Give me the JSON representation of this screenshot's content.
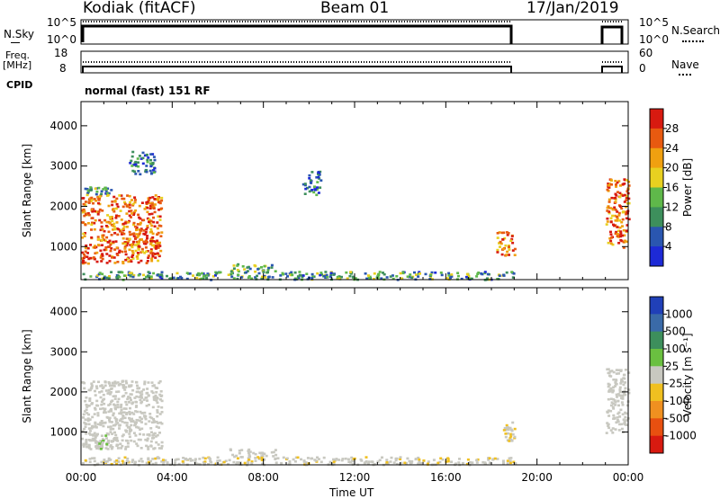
{
  "header": {
    "station": "Kodiak (fitACF)",
    "beam": "Beam 01",
    "date": "17/Jan/2019",
    "mode": "normal (fast) 151 RF"
  },
  "left_labels": {
    "nsky": "N.Sky",
    "nsky_hi": "10^5",
    "nsky_lo": "10^0",
    "freq": "Freq.",
    "freq_unit": "[MHz]",
    "freq_hi": "18",
    "freq_lo": "8",
    "cpid": "CPID"
  },
  "right_labels": {
    "nsearch_hi": "10^5",
    "nsearch_lo": "10^0",
    "nsearch": "N.Search",
    "nave_hi": "60",
    "nave_lo": "0",
    "nave": "Nave"
  },
  "axes": {
    "x_ticks": [
      "00:00",
      "04:00",
      "08:00",
      "12:00",
      "16:00",
      "20:00",
      "00:00"
    ],
    "xlabel": "Time UT",
    "ylabel": "Slant Range [km]",
    "y_ticks": [
      "1000",
      "2000",
      "3000",
      "4000"
    ]
  },
  "power_scale": {
    "label": "Power [dB]",
    "ticks": [
      "4",
      "8",
      "12",
      "16",
      "20",
      "24",
      "28"
    ],
    "colors": [
      "#1d2ad6",
      "#2a56b0",
      "#3d8f5c",
      "#5fb84a",
      "#e8d020",
      "#f0a010",
      "#e85a10",
      "#d81a10"
    ]
  },
  "velocity_scale": {
    "label": "Velocity [m s⁻¹]",
    "ticks": [
      "1000",
      "500",
      "100",
      "25",
      "-25",
      "-100",
      "-500",
      "-1000"
    ],
    "colors": [
      "#2040b8",
      "#3a6aa8",
      "#3d8f5c",
      "#6ac040",
      "#c8c8c0",
      "#f0c020",
      "#f09020",
      "#e85010",
      "#d81a10"
    ]
  },
  "chart_data": [
    {
      "type": "heatmap",
      "title": "Power",
      "xlabel": "Time UT",
      "ylabel": "Slant Range [km]",
      "xlim": [
        "00:00",
        "24:00"
      ],
      "ylim": [
        180,
        4600
      ],
      "zlabel": "Power [dB]",
      "zlim": [
        0,
        30
      ],
      "data_gap": [
        "19:00",
        "23:00"
      ],
      "regions": [
        {
          "t0": 0.0,
          "t1": 3.5,
          "r0": 600,
          "r1": 2300,
          "level": 24
        },
        {
          "t0": 0.0,
          "t1": 1.3,
          "r0": 2300,
          "r1": 2500,
          "level": 10
        },
        {
          "t0": 2.1,
          "t1": 3.2,
          "r0": 2800,
          "r1": 3400,
          "level": 6
        },
        {
          "t0": 9.7,
          "t1": 10.5,
          "r0": 2300,
          "r1": 2900,
          "level": 6
        },
        {
          "t0": 6.5,
          "t1": 8.5,
          "r0": 400,
          "r1": 600,
          "level": 12
        },
        {
          "t0": 0.0,
          "t1": 19.0,
          "r0": 200,
          "r1": 400,
          "level": 10
        },
        {
          "t0": 18.2,
          "t1": 19.0,
          "r0": 800,
          "r1": 1400,
          "level": 22
        },
        {
          "t0": 23.0,
          "t1": 24.0,
          "r0": 1000,
          "r1": 2700,
          "level": 24
        }
      ]
    },
    {
      "type": "heatmap",
      "title": "Velocity",
      "xlabel": "Time UT",
      "ylabel": "Slant Range [km]",
      "xlim": [
        "00:00",
        "24:00"
      ],
      "ylim": [
        180,
        4600
      ],
      "zlabel": "Velocity [m s⁻¹]",
      "zlim": [
        -1000,
        1000
      ],
      "data_gap": [
        "19:00",
        "23:00"
      ],
      "regions": [
        {
          "t0": 0.0,
          "t1": 3.5,
          "r0": 600,
          "r1": 2300,
          "level": 0
        },
        {
          "t0": 0.3,
          "t1": 1.3,
          "r0": 600,
          "r1": 1000,
          "level": 60
        },
        {
          "t0": 6.5,
          "t1": 8.5,
          "r0": 400,
          "r1": 600,
          "level": 0
        },
        {
          "t0": 0.0,
          "t1": 19.0,
          "r0": 200,
          "r1": 400,
          "level": -60
        },
        {
          "t0": 18.5,
          "t1": 19.0,
          "r0": 800,
          "r1": 1300,
          "level": -80
        },
        {
          "t0": 23.0,
          "t1": 24.0,
          "r0": 1000,
          "r1": 2600,
          "level": 10
        }
      ]
    }
  ]
}
